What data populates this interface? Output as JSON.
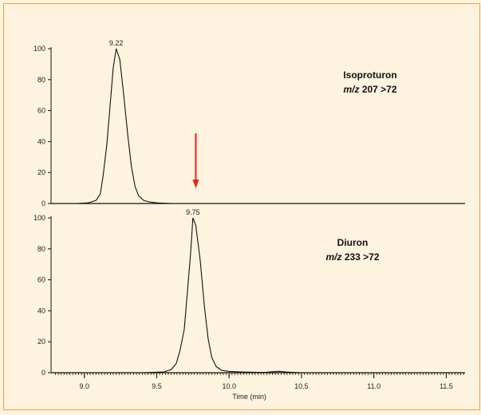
{
  "chart_data": [
    {
      "type": "line",
      "annotation": {
        "compound": "Isoproturon",
        "mz_prefix": "m/z",
        "transition": "207 >72"
      },
      "peak_label": "9.22",
      "peak_x": 9.22,
      "xlim": [
        8.77,
        11.63
      ],
      "ylim": [
        0,
        100
      ],
      "yticks": [
        0,
        20,
        40,
        60,
        80,
        100
      ],
      "arrow_x": 9.77,
      "arrow_color": "#e8231f",
      "series": [
        {
          "x": [
            8.77,
            8.95,
            9.03,
            9.08,
            9.11,
            9.13,
            9.155,
            9.175,
            9.2,
            9.22,
            9.245,
            9.27,
            9.3,
            9.325,
            9.35,
            9.375,
            9.41,
            9.45,
            9.5,
            9.6,
            11.63
          ],
          "y": [
            0,
            0,
            0.5,
            2,
            6,
            18,
            38,
            60,
            88,
            100,
            93,
            72,
            44,
            24,
            11,
            5,
            2,
            1,
            0.4,
            0,
            0
          ]
        }
      ]
    },
    {
      "type": "line",
      "annotation": {
        "compound": "Diuron",
        "mz_prefix": "m/z",
        "transition": "233 >72"
      },
      "peak_label": "9.75",
      "peak_x": 9.75,
      "xlim": [
        8.77,
        11.63
      ],
      "ylim": [
        0,
        100
      ],
      "yticks": [
        0,
        20,
        40,
        60,
        80,
        100
      ],
      "xticks": [
        9.0,
        9.5,
        10.0,
        10.5,
        11.0,
        11.5
      ],
      "xtick_labels": [
        "9.0",
        "9.5",
        "10.0",
        "10.5",
        "11.0",
        "11.5"
      ],
      "xlabel": "Time (min)",
      "series": [
        {
          "x": [
            8.77,
            9.4,
            9.55,
            9.6,
            9.635,
            9.66,
            9.69,
            9.71,
            9.735,
            9.75,
            9.77,
            9.8,
            9.83,
            9.855,
            9.88,
            9.91,
            9.95,
            10.0,
            10.1,
            10.2,
            10.25,
            10.3,
            10.35,
            10.4,
            10.5,
            11.63
          ],
          "y": [
            0,
            0,
            0.5,
            2,
            6,
            14,
            28,
            50,
            78,
            100,
            95,
            73,
            42,
            22,
            10,
            4,
            1.5,
            0.8,
            0.4,
            0.2,
            0.2,
            0.6,
            0.9,
            0.4,
            0,
            0
          ]
        }
      ]
    }
  ]
}
